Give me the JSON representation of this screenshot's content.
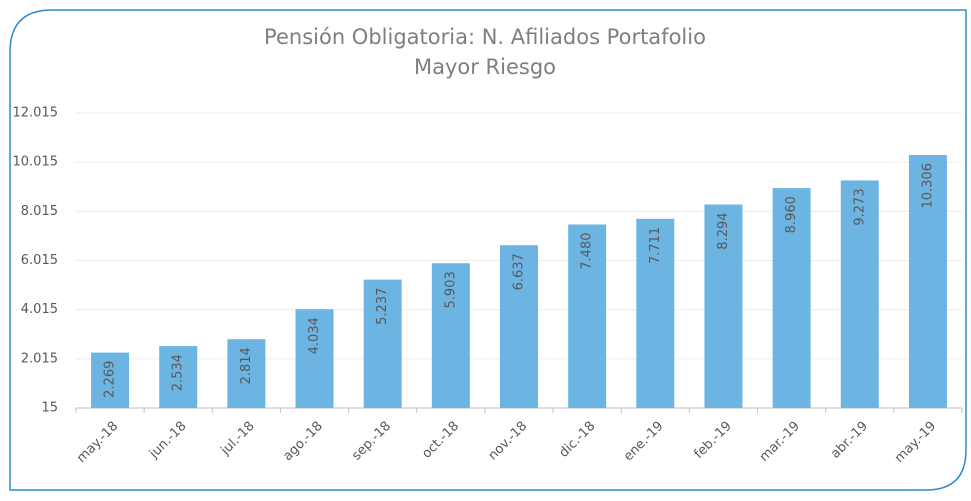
{
  "chart_data": {
    "type": "bar",
    "title": [
      "Pensión Obligatoria: N. Afiliados Portafolio",
      "Mayor Riesgo"
    ],
    "categories": [
      "may.-18",
      "jun.-18",
      "jul.-18",
      "ago.-18",
      "sep.-18",
      "oct.-18",
      "nov.-18",
      "dic.-18",
      "ene.-19",
      "feb.-19",
      "mar.-19",
      "abr.-19",
      "may.-19"
    ],
    "values": [
      2269,
      2534,
      2814,
      4034,
      5237,
      5903,
      6637,
      7480,
      7711,
      8294,
      8960,
      9273,
      10306
    ],
    "value_labels": [
      "2.269",
      "2.534",
      "2.814",
      "4.034",
      "5.237",
      "5.903",
      "6.637",
      "7.480",
      "7.711",
      "8.294",
      "8.960",
      "9.273",
      "10.306"
    ],
    "color": "#6cb4e2",
    "ylim": [
      15,
      12015
    ],
    "yticks": [
      15,
      {
        "value": 2015,
        "label": "2.015"
      },
      {
        "value": 4015,
        "label": "4.015"
      },
      {
        "value": 6015,
        "label": "6.015"
      },
      {
        "value": 8015,
        "label": "8.015"
      },
      {
        "value": 10015,
        "label": "10.015"
      },
      {
        "value": 12015,
        "label": "12.015"
      }
    ],
    "grid": true
  }
}
